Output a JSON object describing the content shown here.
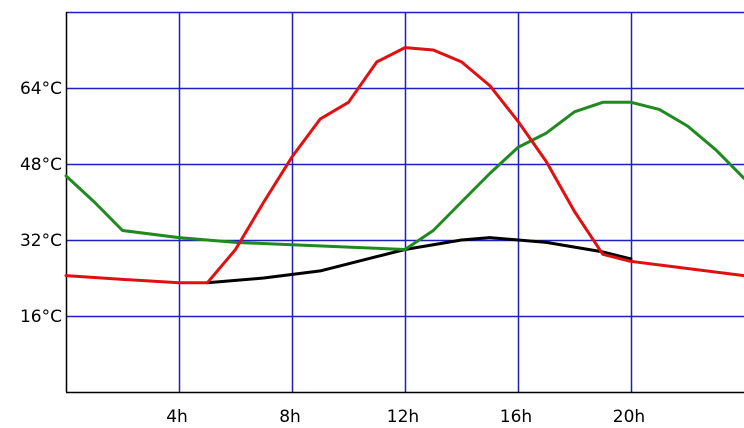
{
  "chart_data": {
    "type": "line",
    "title": "",
    "xlabel": "",
    "ylabel": "",
    "xlim": [
      0,
      24
    ],
    "ylim": [
      0,
      80
    ],
    "grid": true,
    "x_ticks": [
      4,
      8,
      12,
      16,
      20
    ],
    "x_tick_labels": [
      "4h",
      "8h",
      "12h",
      "16h",
      "20h"
    ],
    "y_ticks": [
      16,
      32,
      48,
      64
    ],
    "y_tick_labels": [
      "16°C",
      "32°C",
      "48°C",
      "64°C"
    ],
    "grid_color": "#1f1fbf",
    "series": [
      {
        "color": "#000000",
        "points": [
          [
            5,
            23
          ],
          [
            7,
            24
          ],
          [
            9,
            25.5
          ],
          [
            11,
            28.5
          ],
          [
            12,
            30
          ],
          [
            14,
            32
          ],
          [
            15,
            32.5
          ],
          [
            17,
            31.5
          ],
          [
            19,
            29.5
          ],
          [
            20,
            28
          ]
        ]
      },
      {
        "color": "#1f8a1f",
        "points": [
          [
            0,
            45.5
          ],
          [
            1,
            40
          ],
          [
            2,
            34
          ],
          [
            4,
            32.5
          ],
          [
            6,
            31.5
          ],
          [
            8,
            31
          ],
          [
            10,
            30.5
          ],
          [
            12,
            30
          ],
          [
            13,
            34
          ],
          [
            14,
            40
          ],
          [
            15,
            46
          ],
          [
            16,
            51.5
          ],
          [
            17,
            54.5
          ],
          [
            18,
            59
          ],
          [
            19,
            61
          ],
          [
            20,
            61
          ],
          [
            21,
            59.5
          ],
          [
            22,
            56
          ],
          [
            23,
            51
          ],
          [
            24,
            45
          ]
        ]
      },
      {
        "color": "#e01010",
        "points": [
          [
            0,
            24.5
          ],
          [
            2,
            23.7
          ],
          [
            4,
            23
          ],
          [
            5,
            23
          ],
          [
            6,
            30
          ],
          [
            7,
            40
          ],
          [
            8,
            49.5
          ],
          [
            9,
            57.5
          ],
          [
            10,
            61
          ],
          [
            11,
            69.5
          ],
          [
            12,
            72.5
          ],
          [
            13,
            72
          ],
          [
            14,
            69.5
          ],
          [
            15,
            64.5
          ],
          [
            16,
            57
          ],
          [
            17,
            48.5
          ],
          [
            18,
            38
          ],
          [
            19,
            29
          ],
          [
            20,
            27.5
          ],
          [
            22,
            26
          ],
          [
            24,
            24.5
          ]
        ]
      }
    ]
  }
}
